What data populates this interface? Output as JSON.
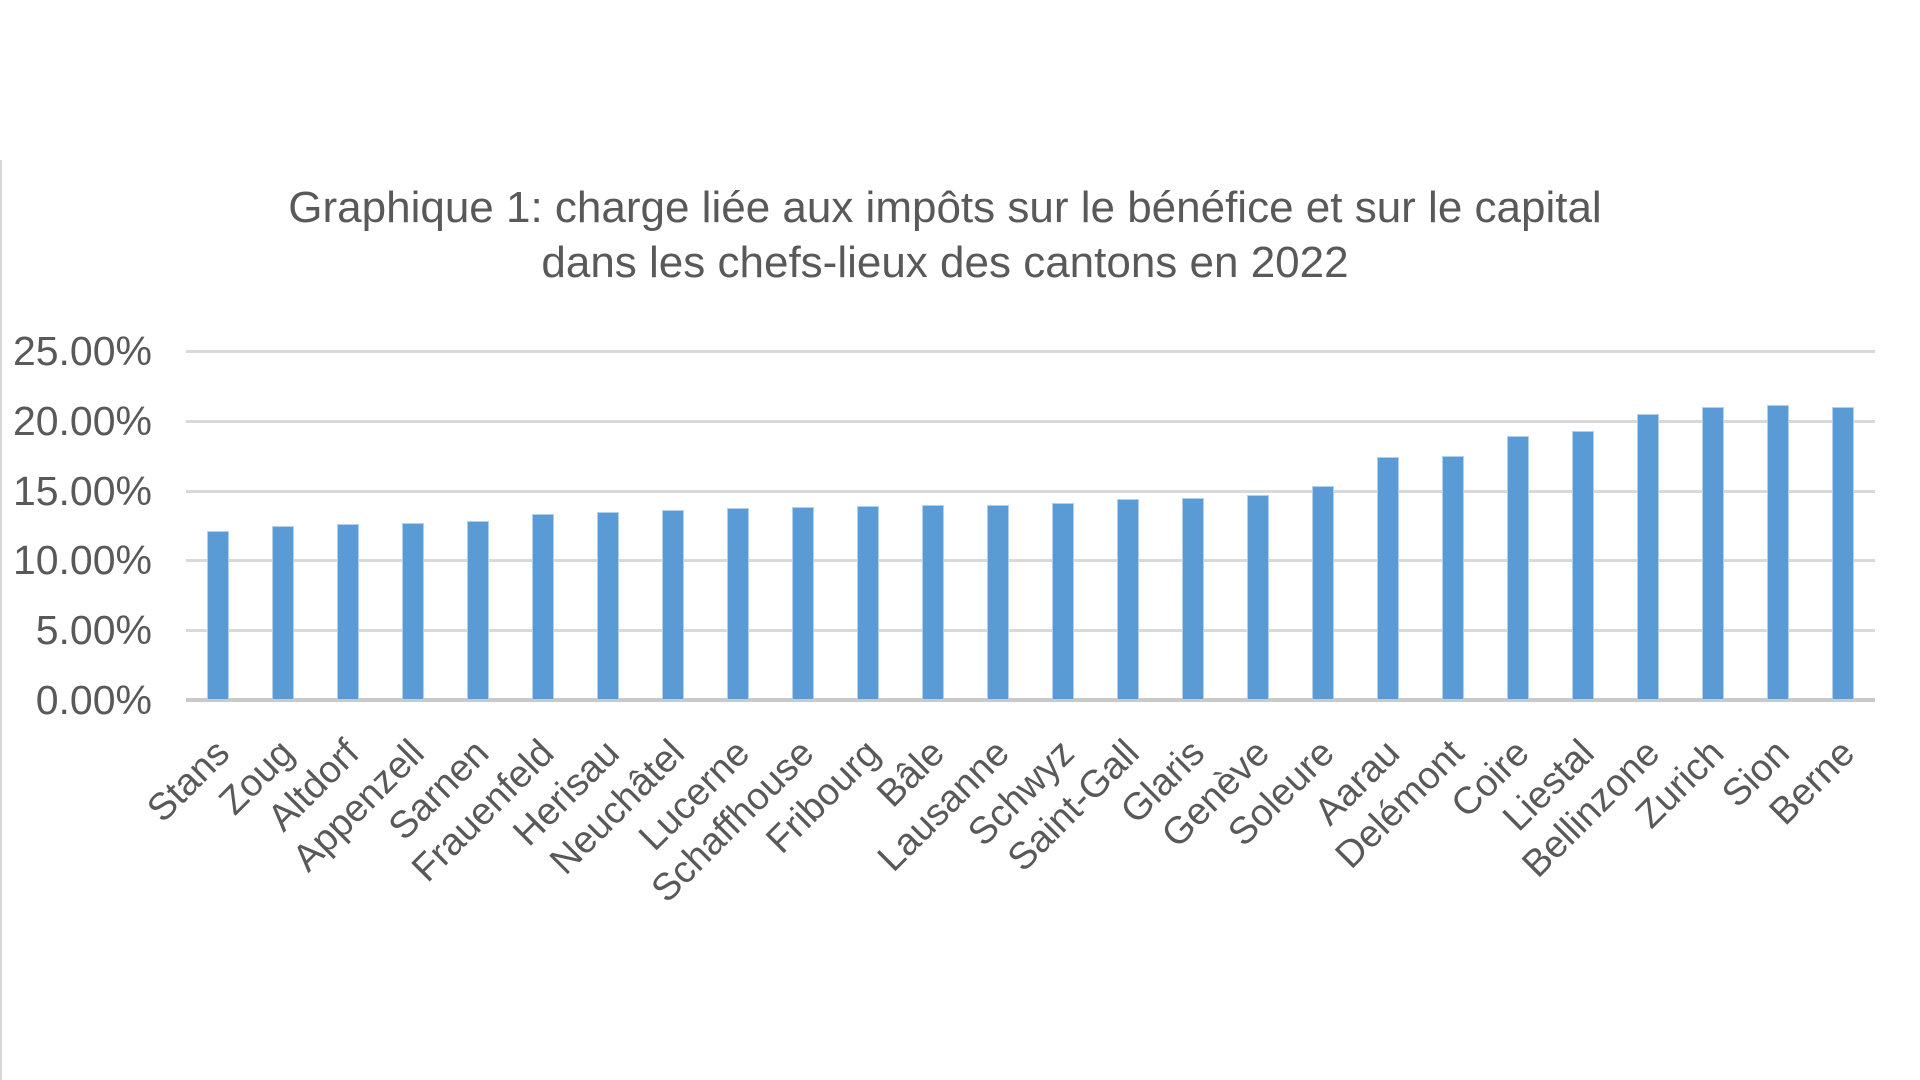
{
  "chart_data": {
    "type": "bar",
    "title_lines": [
      "Graphique 1: charge liée aux impôts sur le bénéfice et sur le capital",
      "dans les chefs-lieux des cantons en 2022"
    ],
    "categories": [
      "Stans",
      "Zoug",
      "Altdorf",
      "Appenzell",
      "Sarnen",
      "Frauenfeld",
      "Herisau",
      "Neuchâtel",
      "Lucerne",
      "Schaffhouse",
      "Fribourg",
      "Bâle",
      "Lausanne",
      "Schwyz",
      "Saint-Gall",
      "Glaris",
      "Genève",
      "Soleure",
      "Aarau",
      "Delémont",
      "Coire",
      "Liestal",
      "Bellinzone",
      "Zurich",
      "Sion",
      "Berne"
    ],
    "values": [
      12.1,
      12.45,
      12.6,
      12.65,
      12.8,
      13.35,
      13.5,
      13.6,
      13.75,
      13.85,
      13.9,
      13.95,
      14.0,
      14.1,
      14.4,
      14.5,
      14.7,
      15.3,
      17.4,
      17.5,
      18.9,
      19.3,
      20.5,
      21.0,
      21.1,
      21.0
    ],
    "unit": "%",
    "ylim": [
      0,
      25
    ],
    "ytick_step": 5,
    "ytick_labels": [
      "0.00%",
      "5.00%",
      "10.00%",
      "15.00%",
      "20.00%",
      "25.00%"
    ],
    "grid": true,
    "legend": "none",
    "x_label_rotation_deg": 45,
    "bar_color": "#5B9BD5",
    "grid_color": "#D9D9D9",
    "baseline_color": "#C9C9C9",
    "text_color": "#595959"
  }
}
